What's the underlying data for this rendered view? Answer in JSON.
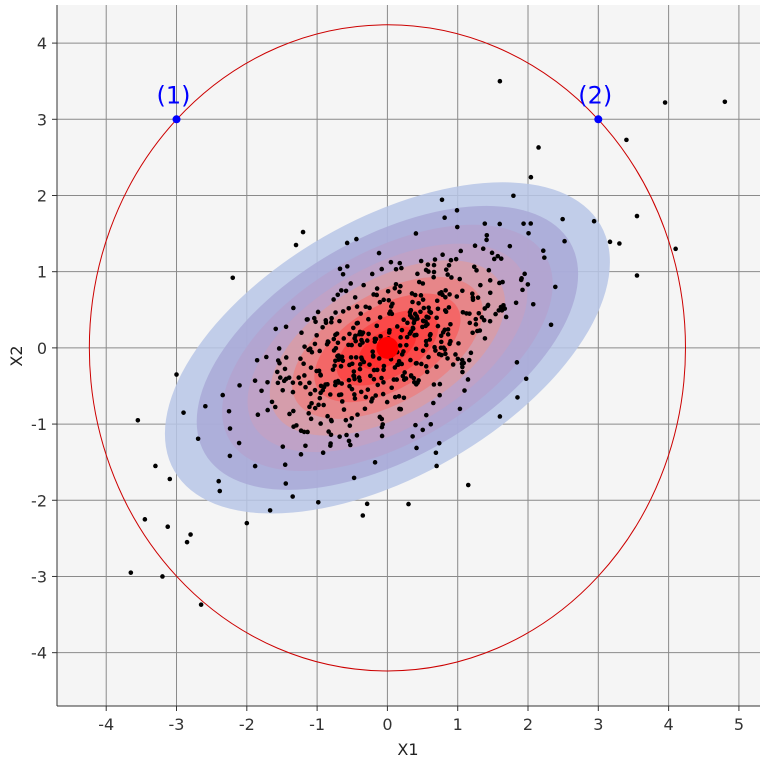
{
  "chart_data": {
    "type": "scatter",
    "xlabel": "X1",
    "ylabel": "X2",
    "xlim": [
      -4.7,
      5.3
    ],
    "ylim": [
      -4.7,
      4.5
    ],
    "grid": true,
    "x_ticks": [
      -4,
      -3,
      -2,
      -1,
      0,
      1,
      2,
      3,
      4,
      5
    ],
    "y_ticks": [
      -4,
      -3,
      -2,
      -1,
      0,
      1,
      2,
      3,
      4
    ],
    "x_tick_labels": [
      "-4",
      "-3",
      "-2",
      "-1",
      "0",
      "1",
      "2",
      "3",
      "4",
      "5"
    ],
    "y_tick_labels": [
      "-4",
      "-3",
      "-2",
      "-1",
      "0",
      "1",
      "2",
      "3",
      "4"
    ],
    "density": {
      "center": [
        0,
        0
      ],
      "angle_deg": 30,
      "levels": [
        {
          "a": 3.5,
          "b": 1.68,
          "color": "#b7c5e6"
        },
        {
          "a": 3.0,
          "b": 1.44,
          "color": "#a9a9d7"
        },
        {
          "a": 2.6,
          "b": 1.25,
          "color": "#b3a3cf"
        },
        {
          "a": 2.2,
          "b": 1.06,
          "color": "#c1a1c6"
        },
        {
          "a": 1.85,
          "b": 0.89,
          "color": "#d89ca6"
        },
        {
          "a": 1.5,
          "b": 0.72,
          "color": "#ea8383"
        },
        {
          "a": 1.15,
          "b": 0.55,
          "color": "#f46262"
        },
        {
          "a": 0.8,
          "b": 0.38,
          "color": "#fa4444"
        },
        {
          "a": 0.45,
          "b": 0.22,
          "color": "#ff2d2d"
        }
      ]
    },
    "circle": {
      "center": [
        0,
        0
      ],
      "radius": 4.24,
      "color": "#cc0000"
    },
    "mean_point": {
      "x": 0,
      "y": 0,
      "color": "#ff0000"
    },
    "marked_points": [
      {
        "label": "(1)",
        "x": -3,
        "y": 3,
        "color": "#0000ff"
      },
      {
        "label": "(2)",
        "x": 3,
        "y": 3,
        "color": "#0000ff"
      }
    ],
    "outliers": [
      [
        1.6,
        3.5
      ],
      [
        3.95,
        3.22
      ],
      [
        4.8,
        3.23
      ],
      [
        3.4,
        2.73
      ],
      [
        2.15,
        2.63
      ],
      [
        3.55,
        1.73
      ],
      [
        3.3,
        1.37
      ],
      [
        4.1,
        1.3
      ],
      [
        3.55,
        0.95
      ],
      [
        -2.2,
        0.92
      ],
      [
        -1.2,
        1.52
      ],
      [
        -1.3,
        1.35
      ],
      [
        -3.0,
        -0.35
      ],
      [
        -3.55,
        -0.95
      ],
      [
        -2.9,
        -0.85
      ],
      [
        -3.3,
        -1.55
      ],
      [
        -3.45,
        -2.25
      ],
      [
        -2.8,
        -2.45
      ],
      [
        -2.85,
        -2.55
      ],
      [
        -3.65,
        -2.95
      ],
      [
        -3.2,
        -3.0
      ],
      [
        -2.65,
        -3.37
      ],
      [
        -2.4,
        -1.75
      ],
      [
        -2.0,
        -2.3
      ],
      [
        0.7,
        -1.55
      ],
      [
        1.6,
        -0.9
      ],
      [
        1.85,
        -0.65
      ],
      [
        -0.35,
        -2.2
      ],
      [
        0.3,
        -2.05
      ],
      [
        1.15,
        -1.8
      ]
    ]
  }
}
